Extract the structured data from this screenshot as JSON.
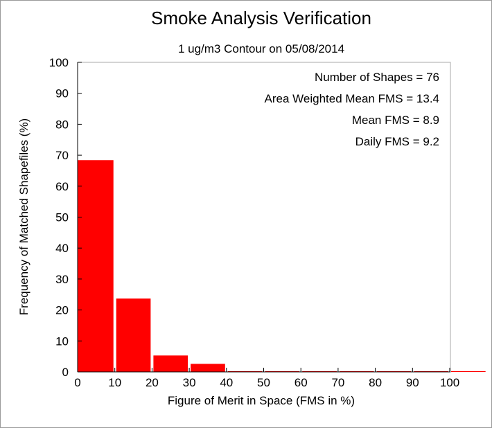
{
  "chart_data": {
    "type": "bar",
    "title": "Smoke Analysis Verification",
    "subtitle": "1 ug/m3 Contour on 05/08/2014",
    "xlabel": "Figure of Merit in Space (FMS in %)",
    "ylabel": "Frequency of Matched Shapefiles (%)",
    "xlim": [
      0,
      110
    ],
    "ylim": [
      0,
      100
    ],
    "xticks": [
      0,
      10,
      20,
      30,
      40,
      50,
      60,
      70,
      80,
      90,
      100
    ],
    "yticks": [
      0,
      10,
      20,
      30,
      40,
      50,
      60,
      70,
      80,
      90,
      100
    ],
    "bin_width": 10,
    "bins": [
      {
        "x0": 0,
        "x1": 10,
        "value": 68.4
      },
      {
        "x0": 10,
        "x1": 20,
        "value": 23.7
      },
      {
        "x0": 20,
        "x1": 30,
        "value": 5.3
      },
      {
        "x0": 30,
        "x1": 40,
        "value": 2.6
      },
      {
        "x0": 40,
        "x1": 50,
        "value": 0
      },
      {
        "x0": 50,
        "x1": 60,
        "value": 0
      },
      {
        "x0": 60,
        "x1": 70,
        "value": 0
      },
      {
        "x0": 70,
        "x1": 80,
        "value": 0
      },
      {
        "x0": 80,
        "x1": 90,
        "value": 0
      },
      {
        "x0": 90,
        "x1": 100,
        "value": 0
      },
      {
        "x0": 100,
        "x1": 110,
        "value": 0
      }
    ],
    "bar_color": "#ff0000",
    "grid": false,
    "annotations": [
      "Number of Shapes = 76",
      "Area Weighted Mean FMS = 13.4",
      "Mean FMS = 8.9",
      "Daily FMS = 9.2"
    ],
    "annotation_position": "top-right"
  }
}
